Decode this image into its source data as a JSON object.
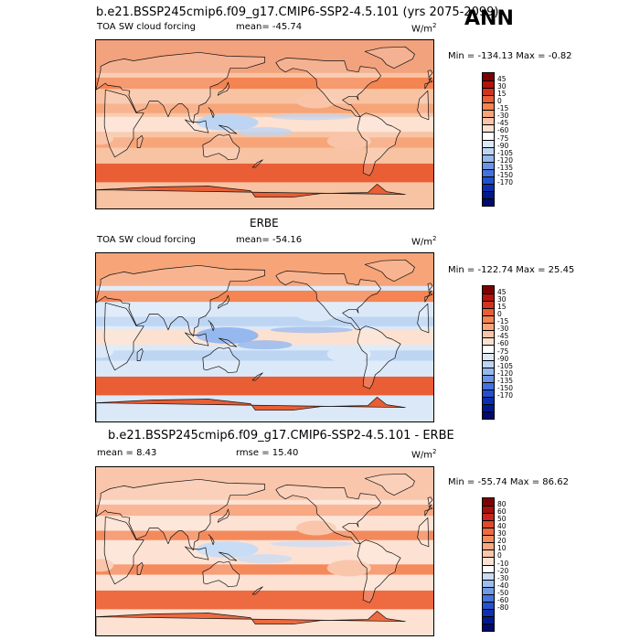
{
  "season": "ANN",
  "colors": {
    "coastline": "#111111",
    "cb_sw": [
      "#7d0000",
      "#b5120a",
      "#d4321f",
      "#e95e34",
      "#f48451",
      "#f7a478",
      "#f9c4a8",
      "#fce1d1",
      "#ffffff",
      "#dbe8f8",
      "#bdd5f3",
      "#95b8ee",
      "#6c94e6",
      "#4472dc",
      "#2350cc",
      "#0c2fb2",
      "#001a8c",
      "#000b6b"
    ],
    "cb_diff": [
      "#7d0000",
      "#a50f0f",
      "#c9251a",
      "#e0492c",
      "#ee6a40",
      "#f48a5c",
      "#f8a882",
      "#fac6ab",
      "#fde1d2",
      "#ffffff",
      "#c8dcf5",
      "#9cbdee",
      "#6f9ae6",
      "#4673dc",
      "#2750cc",
      "#0e31b0",
      "#001c8c",
      "#000b6b"
    ]
  },
  "panels": [
    {
      "id": "model",
      "header": "b.e21.BSSP245cmip6.f09_g17.CMIP6-SSP2-4.5.101 (yrs 2075-2099)",
      "left_label": "TOA SW cloud forcing",
      "stat_label": "mean= -45.74",
      "units": "W/m",
      "units_sup": "2",
      "minmax": "Min = -134.13 Max =  -0.82",
      "cb_labels": [
        "45",
        "30",
        "15",
        "0",
        "-15",
        "-30",
        "-45",
        "-60",
        "-75",
        "-90",
        "-105",
        "-120",
        "-135",
        "-150",
        "-170"
      ],
      "field": {
        "bg": "#f8c3a3",
        "north": "#f2a27c",
        "storm_tracks": "#f48451",
        "tropics": "#fde1d1",
        "subtropics": "#f7a478",
        "south": "#e95e34",
        "strato": "#f9c4a8",
        "warmpool": "#bdd5f3"
      }
    },
    {
      "id": "obs",
      "header": "ERBE",
      "left_label": "TOA SW cloud forcing",
      "stat_label": "mean= -54.16",
      "units": "W/m",
      "units_sup": "2",
      "minmax": "Min = -122.74 Max =  25.45",
      "cb_labels": [
        "45",
        "30",
        "15",
        "0",
        "-15",
        "-30",
        "-45",
        "-60",
        "-75",
        "-90",
        "-105",
        "-120",
        "-135",
        "-150",
        "-170"
      ],
      "field": {
        "bg": "#dbe8f8",
        "north": "#f7a478",
        "storm_tracks": "#f48451",
        "tropics": "#fce1d1",
        "subtropics": "#bdd5f3",
        "south": "#e95e34",
        "strato": "#dbe8f8",
        "warmpool": "#95b8ee"
      }
    },
    {
      "id": "diff",
      "header": "b.e21.BSSP245cmip6.f09_g17.CMIP6-SSP2-4.5.101 - ERBE",
      "left_label": "mean =   8.43",
      "stat_label": "rmse =  15.40",
      "units": "W/m",
      "units_sup": "2",
      "minmax": "Min = -55.74 Max =  86.62",
      "cb_labels": [
        "80",
        "60",
        "50",
        "40",
        "30",
        "20",
        "10",
        "0",
        "-10",
        "-20",
        "-30",
        "-40",
        "-50",
        "-60",
        "-80"
      ],
      "field": {
        "bg": "#fde1d2",
        "north": "#fac6ab",
        "storm_tracks": "#f8a882",
        "tropics": "#fde1d2",
        "subtropics": "#f48a5c",
        "south": "#ee6a40",
        "strato": "#fac6ab",
        "warmpool": "#c8dcf5"
      }
    }
  ]
}
